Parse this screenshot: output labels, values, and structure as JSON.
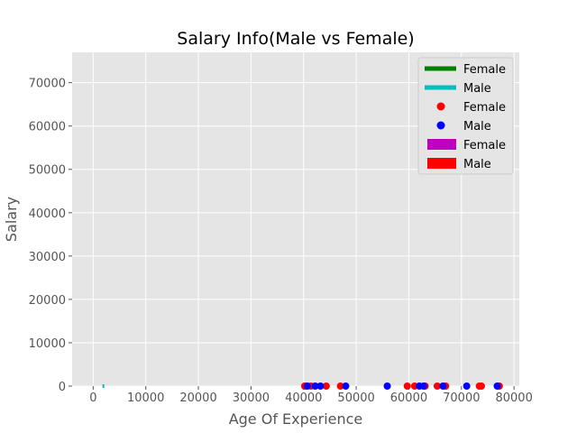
{
  "chart_data": {
    "type": "scatter",
    "title": "Salary Info(Male vs Female)",
    "xlabel": "Age Of Experience",
    "ylabel": "Salary",
    "xlim": [
      -4000,
      81000
    ],
    "ylim": [
      0,
      77000
    ],
    "xticks": [
      0,
      10000,
      20000,
      30000,
      40000,
      50000,
      60000,
      70000,
      80000
    ],
    "yticks": [
      0,
      10000,
      20000,
      30000,
      40000,
      50000,
      60000,
      70000
    ],
    "grid": true,
    "legend_position": "top-right",
    "style": {
      "background": "#e5e5e5",
      "grid_color": "#ffffff"
    },
    "line_series": [
      {
        "name": "Female",
        "color": "#008000",
        "x": [
          1800,
          2100
        ],
        "y": [
          0,
          0
        ]
      },
      {
        "name": "Male",
        "color": "#00bfbf",
        "x": [
          1800,
          2100
        ],
        "y": [
          0,
          0
        ]
      }
    ],
    "scatter_series": [
      {
        "name": "Female",
        "color": "#ff0000",
        "x": [
          40200,
          41400,
          44300,
          47000,
          59700,
          61100,
          63100,
          65400,
          67000,
          73400,
          73800,
          77200
        ],
        "y": [
          0,
          0,
          0,
          0,
          0,
          0,
          0,
          0,
          0,
          0,
          0,
          0
        ]
      },
      {
        "name": "Male",
        "color": "#0000ff",
        "x": [
          40700,
          42200,
          43200,
          48000,
          55900,
          62000,
          62800,
          66500,
          71000,
          76800
        ],
        "y": [
          0,
          0,
          0,
          0,
          0,
          0,
          0,
          0,
          0,
          0
        ]
      }
    ],
    "bar_series": [
      {
        "name": "Female",
        "color": "#bf00bf"
      },
      {
        "name": "Male",
        "color": "#ff0000"
      }
    ]
  }
}
